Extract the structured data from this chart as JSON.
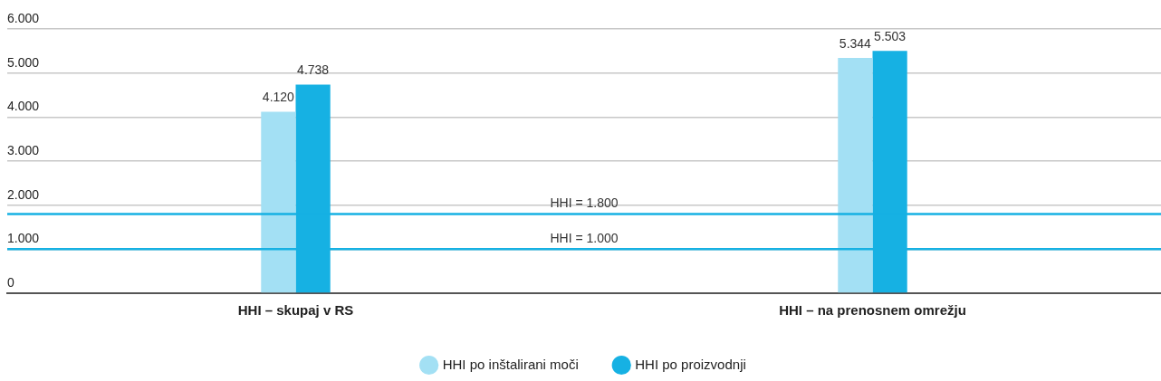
{
  "chart_data": {
    "type": "bar",
    "categories": [
      "HHI – skupaj v RS",
      "HHI – na prenosnem omrežju"
    ],
    "series": [
      {
        "name": "HHI po inštalirani moči",
        "color": "#a3e0f4",
        "values": [
          4120,
          5344
        ],
        "value_labels": [
          "4.120",
          "5.344"
        ]
      },
      {
        "name": "HHI po proizvodnji",
        "color": "#16b1e3",
        "values": [
          4738,
          5503
        ],
        "value_labels": [
          "4.738",
          "5.503"
        ]
      }
    ],
    "ylim": [
      0,
      6000
    ],
    "yticks": [
      {
        "value": 0,
        "label": "0"
      },
      {
        "value": 1000,
        "label": "1.000"
      },
      {
        "value": 2000,
        "label": "2.000"
      },
      {
        "value": 3000,
        "label": "3.000"
      },
      {
        "value": 4000,
        "label": "4.000"
      },
      {
        "value": 5000,
        "label": "5.000"
      },
      {
        "value": 6000,
        "label": "6.000"
      }
    ],
    "ref_lines": [
      {
        "axis": "y",
        "value": 1800,
        "label": "HHI = 1.800",
        "color": "#16b1e3"
      },
      {
        "axis": "y",
        "value": 1000,
        "label": "HHI = 1.000",
        "color": "#16b1e3"
      }
    ],
    "grid": "y",
    "legend": "bottom"
  }
}
